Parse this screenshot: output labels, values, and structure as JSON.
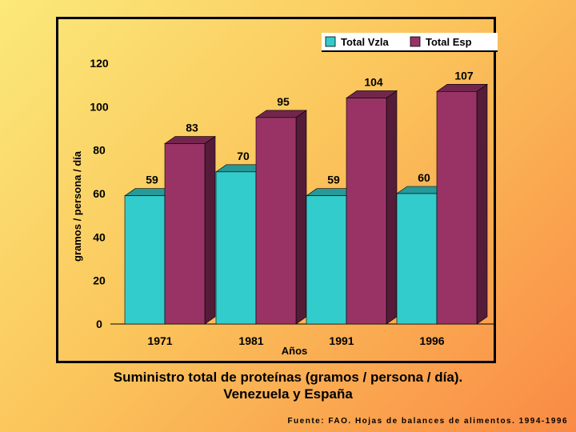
{
  "chart_data": {
    "type": "bar",
    "categories": [
      "1971",
      "1981",
      "1991",
      "1996"
    ],
    "series": [
      {
        "name": "Total Vzla",
        "values": [
          59,
          70,
          59,
          60
        ],
        "color": "#33cccc"
      },
      {
        "name": "Total Esp",
        "values": [
          83,
          95,
          104,
          107
        ],
        "color": "#993366"
      }
    ],
    "title": "",
    "xlabel": "Años",
    "ylabel": "gramos / persona / día",
    "ylim": [
      0,
      120
    ],
    "yticks": [
      0,
      20,
      40,
      60,
      80,
      100,
      120
    ],
    "legend_position": "top-right",
    "grid": false,
    "bar_style": "3d"
  },
  "caption": {
    "line1": "Suministro total de proteínas (gramos / persona / día).",
    "line2": "Venezuela y España"
  },
  "source": "Fuente: FAO. Hojas de balances de alimentos. 1994-1996"
}
